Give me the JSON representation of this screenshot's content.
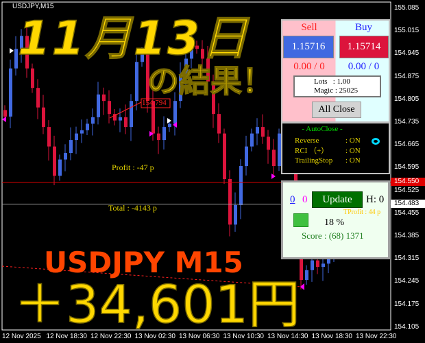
{
  "chart_header": "USDJPY,M15",
  "overlay": {
    "date_title": "11月13日",
    "result_title": "の結果！",
    "pair_title": "USDJPY M15",
    "profit_yen": "＋34,601円"
  },
  "chart_text": {
    "profit": "Profit : -47 p",
    "total": "Total : -4143 p",
    "marker_price": "154.794"
  },
  "price_axis": [
    "155.085",
    "155.015",
    "154.945",
    "154.875",
    "154.805",
    "154.735",
    "154.665",
    "154.595",
    "154.525",
    "154.455",
    "154.385",
    "154.315",
    "154.245",
    "154.175",
    "154.105"
  ],
  "price_tags": {
    "red_line": "154.550",
    "gray_line": "154.483"
  },
  "time_axis": [
    "12 Nov 2025",
    "12 Nov 18:30",
    "12 Nov 22:30",
    "13 Nov 02:30",
    "13 Nov 06:30",
    "13 Nov 10:30",
    "13 Nov 14:30",
    "13 Nov 18:30",
    "13 Nov 22:30"
  ],
  "colors": {
    "bull": "#4169e1",
    "bear": "#dc143c",
    "title_yellow": "#ffd700",
    "title_orange": "#ff4500"
  },
  "chart_data": {
    "type": "candlestick",
    "ylim": [
      154.105,
      155.085
    ],
    "closes": [
      154.752,
      154.9,
      154.96,
      155.0,
      154.9,
      154.84,
      154.78,
      154.72,
      154.66,
      154.57,
      154.62,
      154.64,
      154.68,
      154.7,
      154.71,
      154.73,
      154.75,
      154.82,
      154.8,
      154.76,
      154.74,
      154.75,
      154.72,
      154.8,
      154.92,
      154.95,
      154.8,
      154.7,
      154.68,
      154.72,
      154.73,
      154.8,
      154.88,
      154.93,
      154.97,
      154.96,
      154.93,
      154.86,
      154.76,
      154.7,
      154.56,
      154.42,
      154.48,
      154.6,
      154.66,
      154.7,
      154.72,
      154.69,
      154.65,
      154.6,
      154.7,
      154.68,
      154.6,
      154.5,
      154.25,
      154.28,
      154.31,
      154.29,
      154.3,
      154.32,
      154.33
    ],
    "hlines": [
      154.55,
      154.483
    ]
  },
  "trade_panel": {
    "sell_label": "Sell",
    "buy_label": "Buy",
    "sell_price": "1.15716",
    "buy_price": "1.15714",
    "sell_pl": "0.00 / 0",
    "buy_pl": "0.00 / 0",
    "lots": "Lots   : 1.00",
    "magic": "Magic : 25025",
    "all_close": "All Close"
  },
  "autoclose_panel": {
    "title": "- AutoClose -",
    "rows": [
      {
        "label": "Reverse",
        "value": ": ON"
      },
      {
        "label": "RCI （+）",
        "value": ": ON"
      },
      {
        "label": "TrailingStop",
        "value": ": ON"
      }
    ]
  },
  "score_panel": {
    "count_blue": "0",
    "count_magenta": "0",
    "update": "Update",
    "h_label": "H: 0",
    "percent": "18 %",
    "score": "Score : (68) 1371",
    "tprofit": "TProfit : 44 p"
  }
}
